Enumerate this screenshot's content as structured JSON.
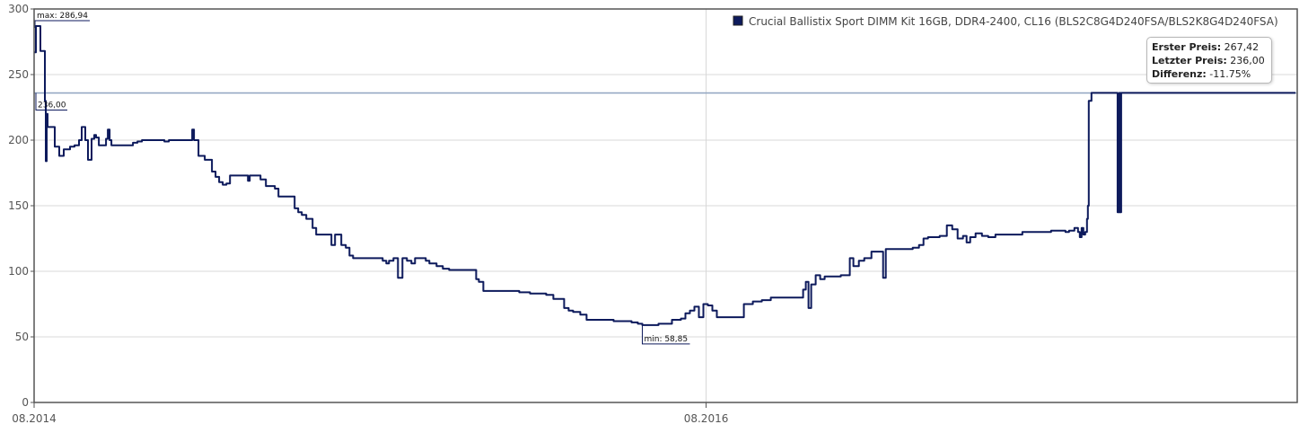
{
  "chart_data": {
    "type": "line",
    "legend": {
      "label": "Crucial Ballistix Sport DIMM Kit 16GB, DDR4-2400, CL16 (BLS2C8G4D240FSA/BLS2K8G4D240FSA)",
      "placement": "top-right"
    },
    "x_tick_labels": [
      "08.2014",
      "08.2016"
    ],
    "y_ticks": [
      "0",
      "50",
      "100",
      "150",
      "200",
      "250",
      "300"
    ],
    "ylim": [
      0,
      300
    ],
    "grid": true,
    "annotations": {
      "max_label": "max: 286,94",
      "min_label": "min: 58,85",
      "last_label": "236,00"
    },
    "reference_line_value": 236.0,
    "tooltip": {
      "first_price_label": "Erster Preis:",
      "first_price_value": "267,42",
      "last_price_label": "Letzter Preis:",
      "last_price_value": "236,00",
      "diff_label": "Differenz:",
      "diff_value": "-11.75%"
    },
    "colors": {
      "series": "#0d1a5c",
      "grid": "#d8d8d8",
      "reference": "#8fa4c0",
      "frame": "#555555"
    },
    "series": [
      {
        "x_range": [
          "08.2014",
          "08.2016",
          "04.2018"
        ],
        "points": [
          [
            0,
            267
          ],
          [
            2,
            287
          ],
          [
            6,
            287
          ],
          [
            7,
            268
          ],
          [
            11,
            268
          ],
          [
            12,
            230
          ],
          [
            13,
            184
          ],
          [
            14,
            220
          ],
          [
            15,
            210
          ],
          [
            20,
            210
          ],
          [
            23,
            195
          ],
          [
            27,
            195
          ],
          [
            28,
            188
          ],
          [
            31,
            188
          ],
          [
            33,
            193
          ],
          [
            40,
            195
          ],
          [
            45,
            196
          ],
          [
            50,
            200
          ],
          [
            53,
            210
          ],
          [
            55,
            210
          ],
          [
            57,
            200
          ],
          [
            60,
            185
          ],
          [
            62,
            185
          ],
          [
            64,
            201
          ],
          [
            67,
            204
          ],
          [
            69,
            202
          ],
          [
            72,
            196
          ],
          [
            76,
            196
          ],
          [
            80,
            201
          ],
          [
            82,
            208
          ],
          [
            84,
            200
          ],
          [
            86,
            196
          ],
          [
            92,
            196
          ],
          [
            100,
            196
          ],
          [
            110,
            198
          ],
          [
            115,
            199
          ],
          [
            120,
            200
          ],
          [
            140,
            200
          ],
          [
            145,
            199
          ],
          [
            150,
            200
          ],
          [
            158,
            200
          ],
          [
            172,
            200
          ],
          [
            176,
            208
          ],
          [
            178,
            200
          ],
          [
            183,
            188
          ],
          [
            190,
            185
          ],
          [
            195,
            185
          ],
          [
            198,
            176
          ],
          [
            202,
            172
          ],
          [
            206,
            168
          ],
          [
            210,
            166
          ],
          [
            214,
            167
          ],
          [
            218,
            173
          ],
          [
            225,
            173
          ],
          [
            230,
            173
          ],
          [
            235,
            173
          ],
          [
            238,
            169
          ],
          [
            240,
            173
          ],
          [
            248,
            173
          ],
          [
            252,
            170
          ],
          [
            258,
            165
          ],
          [
            262,
            165
          ],
          [
            268,
            163
          ],
          [
            272,
            157
          ],
          [
            285,
            157
          ],
          [
            290,
            148
          ],
          [
            294,
            145
          ],
          [
            298,
            143
          ],
          [
            303,
            140
          ],
          [
            310,
            133
          ],
          [
            314,
            128
          ],
          [
            320,
            128
          ],
          [
            327,
            128
          ],
          [
            331,
            120
          ],
          [
            335,
            128
          ],
          [
            338,
            128
          ],
          [
            342,
            120
          ],
          [
            347,
            118
          ],
          [
            351,
            112
          ],
          [
            355,
            110
          ],
          [
            360,
            110
          ],
          [
            370,
            110
          ],
          [
            380,
            110
          ],
          [
            388,
            108
          ],
          [
            392,
            106
          ],
          [
            395,
            108
          ],
          [
            400,
            110
          ],
          [
            405,
            95
          ],
          [
            410,
            110
          ],
          [
            415,
            108
          ],
          [
            420,
            106
          ],
          [
            424,
            110
          ],
          [
            430,
            110
          ],
          [
            436,
            108
          ],
          [
            440,
            106
          ],
          [
            448,
            104
          ],
          [
            455,
            102
          ],
          [
            462,
            101
          ],
          [
            470,
            101
          ],
          [
            480,
            101
          ],
          [
            488,
            101
          ],
          [
            492,
            94
          ],
          [
            495,
            92
          ],
          [
            500,
            85
          ],
          [
            510,
            85
          ],
          [
            518,
            85
          ],
          [
            525,
            85
          ],
          [
            530,
            85
          ],
          [
            540,
            84
          ],
          [
            552,
            83
          ],
          [
            560,
            83
          ],
          [
            570,
            82
          ],
          [
            578,
            79
          ],
          [
            585,
            79
          ],
          [
            590,
            72
          ],
          [
            595,
            70
          ],
          [
            600,
            69
          ],
          [
            608,
            67
          ],
          [
            615,
            63
          ],
          [
            625,
            63
          ],
          [
            638,
            63
          ],
          [
            645,
            62
          ],
          [
            655,
            62
          ],
          [
            665,
            61
          ],
          [
            672,
            60
          ],
          [
            677,
            59
          ],
          [
            685,
            59
          ],
          [
            695,
            60
          ],
          [
            703,
            60
          ],
          [
            710,
            63
          ],
          [
            720,
            64
          ],
          [
            725,
            68
          ],
          [
            730,
            70
          ],
          [
            735,
            73
          ],
          [
            740,
            65
          ],
          [
            745,
            75
          ],
          [
            750,
            74
          ],
          [
            755,
            70
          ],
          [
            760,
            65
          ],
          [
            770,
            65
          ],
          [
            778,
            65
          ],
          [
            785,
            65
          ],
          [
            790,
            75
          ],
          [
            800,
            77
          ],
          [
            810,
            78
          ],
          [
            820,
            80
          ],
          [
            835,
            80
          ],
          [
            850,
            80
          ],
          [
            856,
            86
          ],
          [
            859,
            92
          ],
          [
            862,
            72
          ],
          [
            865,
            90
          ],
          [
            870,
            97
          ],
          [
            875,
            94
          ],
          [
            880,
            96
          ],
          [
            885,
            96
          ],
          [
            892,
            96
          ],
          [
            898,
            97
          ],
          [
            904,
            97
          ],
          [
            908,
            110
          ],
          [
            912,
            104
          ],
          [
            918,
            108
          ],
          [
            924,
            110
          ],
          [
            932,
            115
          ],
          [
            940,
            115
          ],
          [
            945,
            95
          ],
          [
            948,
            117
          ],
          [
            955,
            117
          ],
          [
            965,
            117
          ],
          [
            978,
            118
          ],
          [
            985,
            120
          ],
          [
            990,
            125
          ],
          [
            995,
            126
          ],
          [
            1000,
            126
          ],
          [
            1008,
            127
          ],
          [
            1012,
            127
          ],
          [
            1016,
            135
          ],
          [
            1022,
            132
          ],
          [
            1028,
            125
          ],
          [
            1034,
            127
          ],
          [
            1038,
            122
          ],
          [
            1042,
            126
          ],
          [
            1048,
            129
          ],
          [
            1055,
            127
          ],
          [
            1062,
            126
          ],
          [
            1070,
            128
          ],
          [
            1080,
            128
          ],
          [
            1092,
            128
          ],
          [
            1100,
            130
          ],
          [
            1112,
            130
          ],
          [
            1122,
            130
          ],
          [
            1132,
            131
          ],
          [
            1140,
            131
          ],
          [
            1148,
            130
          ],
          [
            1152,
            131
          ],
          [
            1158,
            133
          ],
          [
            1162,
            130
          ],
          [
            1164,
            126
          ],
          [
            1166,
            133
          ],
          [
            1168,
            128
          ],
          [
            1170,
            130
          ],
          [
            1172,
            140
          ],
          [
            1173,
            150
          ],
          [
            1174,
            230
          ],
          [
            1177,
            236
          ],
          [
            1182,
            236
          ],
          [
            1190,
            236
          ],
          [
            1198,
            236
          ],
          [
            1205,
            236
          ],
          [
            1206,
            145
          ],
          [
            1208,
            236
          ],
          [
            1209,
            145
          ],
          [
            1210,
            236
          ],
          [
            1213,
            236
          ],
          [
            1220,
            236
          ],
          [
            1260,
            236
          ],
          [
            1300,
            236
          ],
          [
            1360,
            236
          ],
          [
            1404,
            236
          ]
        ]
      }
    ]
  }
}
